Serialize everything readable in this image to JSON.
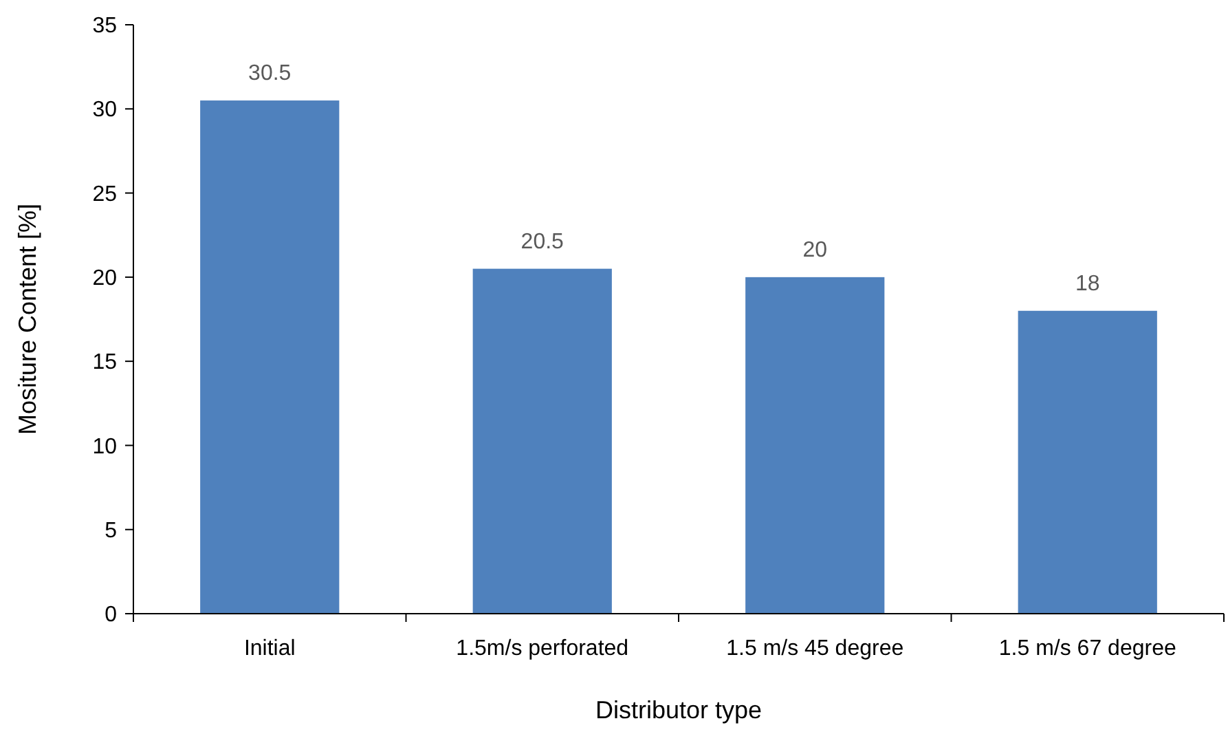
{
  "chart_data": {
    "type": "bar",
    "xlabel": "Distributor type",
    "ylabel": "Mositure Content [%]",
    "categories": [
      "Initial",
      "1.5m/s perforated",
      "1.5 m/s 45 degree",
      "1.5 m/s 67 degree"
    ],
    "values": [
      30.5,
      20.5,
      20,
      18
    ],
    "color": "#4f81bd",
    "ylim": [
      0,
      35
    ],
    "yticks": [
      0,
      5,
      10,
      15,
      20,
      25,
      30,
      35
    ],
    "grid": false,
    "data_labels": true
  }
}
